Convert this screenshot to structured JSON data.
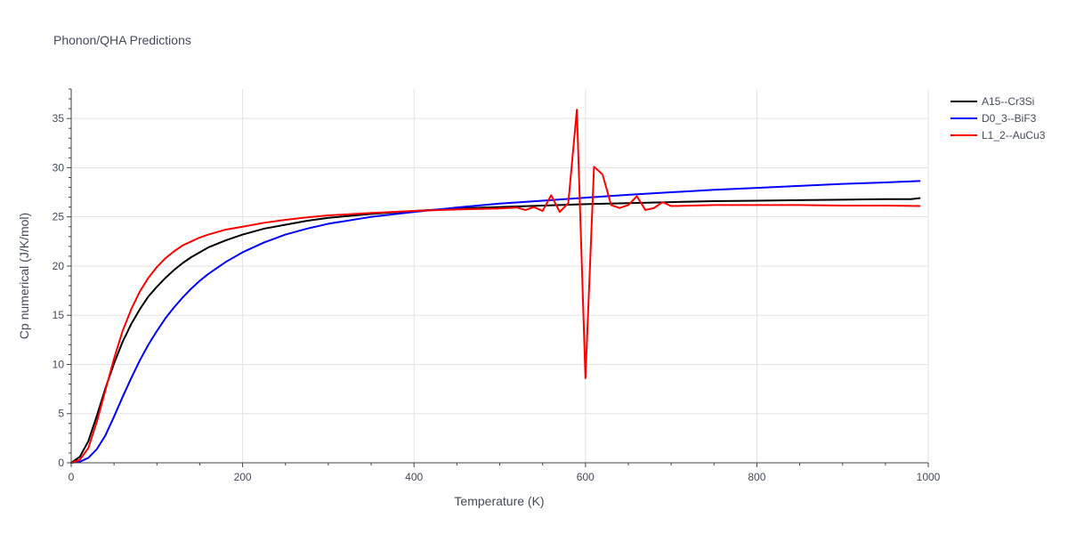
{
  "chart_data": {
    "type": "line",
    "title": "Phonon/QHA Predictions",
    "xlabel": "Temperature (K)",
    "ylabel": "Cp numerical (J/K/mol)",
    "xlim": [
      0,
      1000
    ],
    "ylim": [
      0,
      38
    ],
    "xticks": [
      0,
      200,
      400,
      600,
      800,
      1000
    ],
    "xticklabels": [
      "0",
      "200",
      "400",
      "600",
      "800",
      "1000"
    ],
    "yticks": [
      0,
      5,
      10,
      15,
      20,
      25,
      30,
      35
    ],
    "yticklabels": [
      "0",
      "5",
      "10",
      "15",
      "20",
      "25",
      "30",
      "35"
    ],
    "grid": true,
    "legend_position": "top-right",
    "series": [
      {
        "name": "A15--Cr3Si",
        "color": "#000000",
        "x": [
          0,
          10,
          20,
          30,
          40,
          50,
          60,
          70,
          80,
          90,
          100,
          110,
          120,
          130,
          140,
          150,
          160,
          180,
          200,
          225,
          250,
          275,
          300,
          350,
          400,
          450,
          500,
          550,
          600,
          650,
          700,
          750,
          800,
          850,
          900,
          950,
          980,
          990
        ],
        "y": [
          0,
          0.6,
          2.2,
          4.8,
          7.6,
          10.1,
          12.3,
          14.1,
          15.6,
          16.9,
          17.9,
          18.8,
          19.6,
          20.3,
          20.9,
          21.4,
          21.9,
          22.6,
          23.2,
          23.8,
          24.2,
          24.6,
          24.9,
          25.3,
          25.6,
          25.85,
          26.0,
          26.15,
          26.3,
          26.4,
          26.5,
          26.6,
          26.65,
          26.7,
          26.75,
          26.8,
          26.8,
          26.9
        ]
      },
      {
        "name": "D0_3--BiF3",
        "color": "#0000ff",
        "x": [
          0,
          10,
          20,
          30,
          40,
          50,
          60,
          70,
          80,
          90,
          100,
          110,
          120,
          130,
          140,
          150,
          160,
          180,
          200,
          225,
          250,
          275,
          300,
          350,
          400,
          450,
          500,
          550,
          600,
          650,
          700,
          750,
          800,
          850,
          900,
          950,
          990
        ],
        "y": [
          0,
          0.1,
          0.5,
          1.4,
          2.8,
          4.7,
          6.7,
          8.6,
          10.4,
          12.0,
          13.4,
          14.7,
          15.8,
          16.8,
          17.7,
          18.5,
          19.2,
          20.4,
          21.4,
          22.4,
          23.2,
          23.8,
          24.3,
          25.0,
          25.5,
          25.95,
          26.35,
          26.65,
          26.95,
          27.25,
          27.5,
          27.75,
          27.95,
          28.15,
          28.35,
          28.5,
          28.65
        ]
      },
      {
        "name": "L1_2--AuCu3",
        "color": "#ff0000",
        "x": [
          0,
          10,
          20,
          30,
          40,
          50,
          60,
          70,
          80,
          90,
          100,
          110,
          120,
          130,
          140,
          150,
          160,
          180,
          200,
          225,
          250,
          275,
          300,
          350,
          400,
          450,
          500,
          520,
          530,
          540,
          550,
          560,
          570,
          580,
          590,
          600,
          610,
          620,
          630,
          640,
          650,
          660,
          670,
          680,
          690,
          700,
          750,
          800,
          850,
          900,
          950,
          990
        ],
        "y": [
          0,
          0.3,
          1.5,
          4.2,
          7.4,
          10.6,
          13.4,
          15.6,
          17.4,
          18.8,
          19.9,
          20.8,
          21.5,
          22.1,
          22.5,
          22.9,
          23.2,
          23.7,
          24.0,
          24.4,
          24.7,
          24.95,
          25.15,
          25.4,
          25.6,
          25.75,
          25.85,
          25.95,
          25.7,
          26.0,
          25.6,
          27.2,
          25.5,
          26.4,
          35.9,
          8.6,
          30.1,
          29.3,
          26.2,
          25.9,
          26.2,
          27.1,
          25.7,
          25.9,
          26.5,
          26.1,
          26.2,
          26.2,
          26.2,
          26.15,
          26.15,
          26.1
        ]
      }
    ]
  }
}
